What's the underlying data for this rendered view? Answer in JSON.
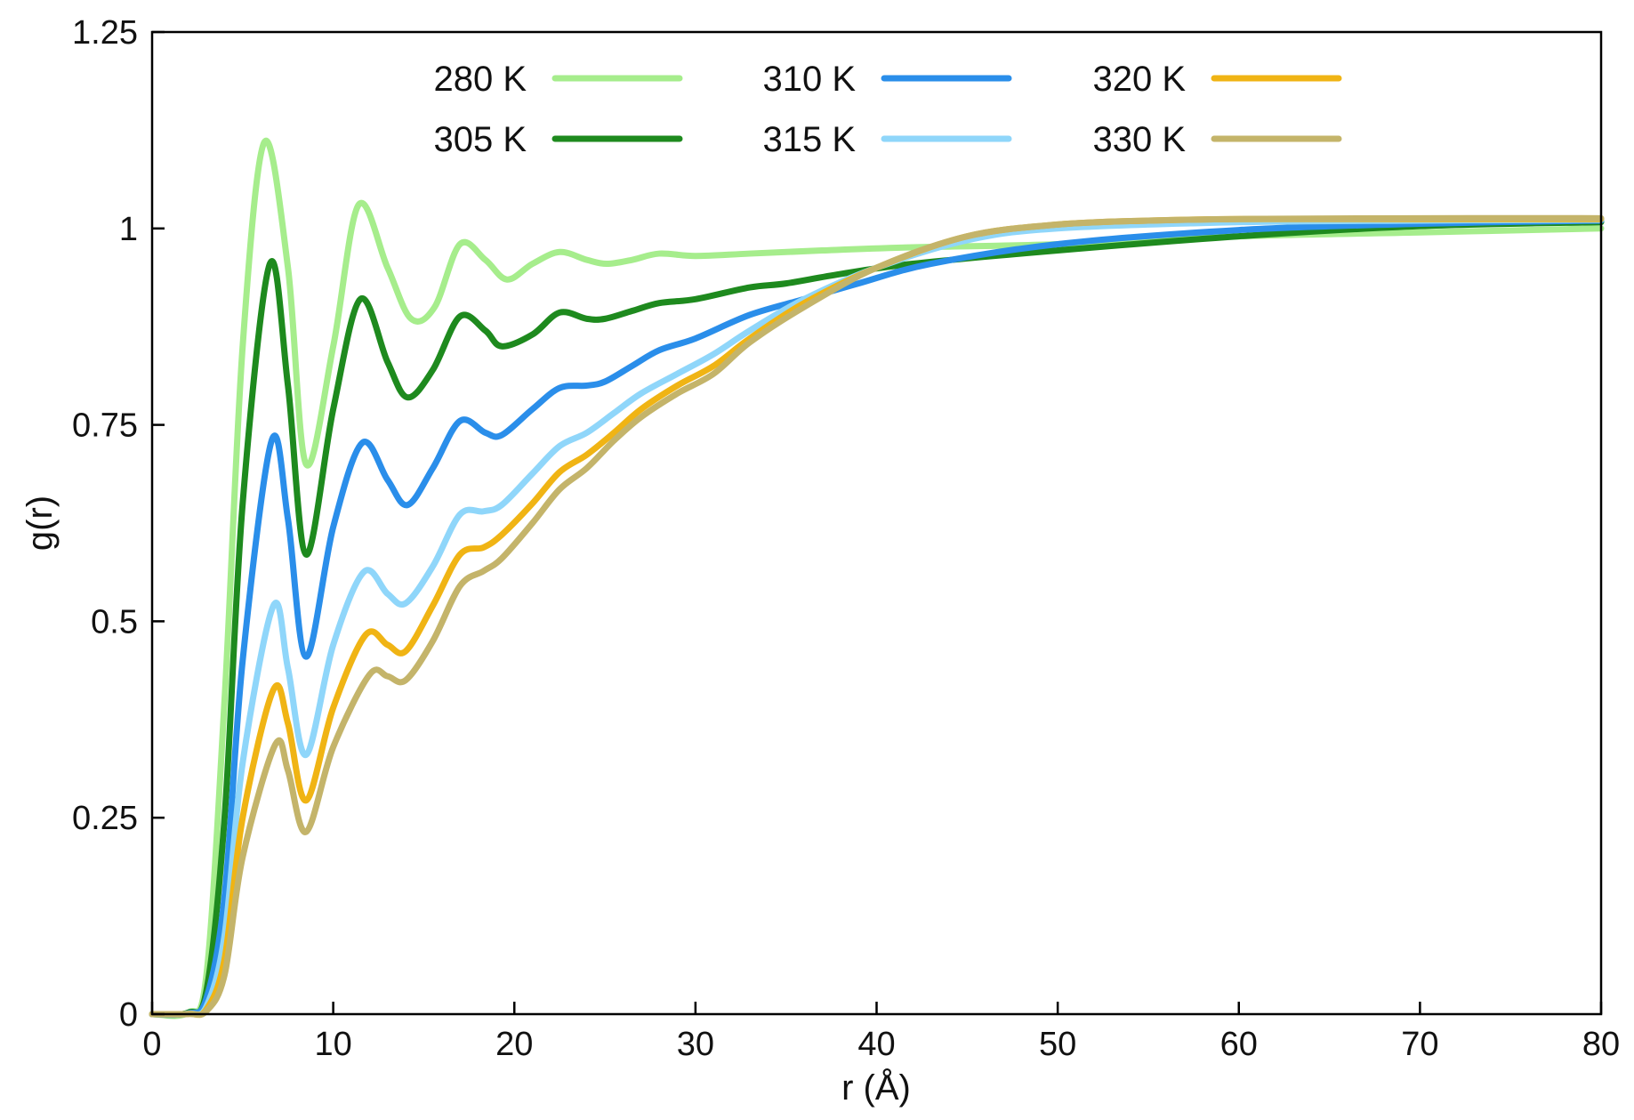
{
  "chart_data": {
    "type": "line",
    "xlabel": "r (Å)",
    "ylabel": "g(r)",
    "xlim": [
      0,
      80
    ],
    "ylim": [
      0,
      1.25
    ],
    "x_ticks": [
      0,
      10,
      20,
      30,
      40,
      50,
      60,
      70,
      80
    ],
    "y_ticks": [
      0,
      0.25,
      0.5,
      0.75,
      1,
      1.25
    ],
    "x_tick_labels": [
      "0",
      "10",
      "20",
      "30",
      "40",
      "50",
      "60",
      "70",
      "80"
    ],
    "y_tick_labels": [
      "0",
      "0.25",
      "0.5",
      "0.75",
      "1",
      "1.25"
    ],
    "grid": false,
    "legend_position": "top",
    "series": [
      {
        "name": "280 K",
        "color": "#a6ed8c",
        "x": [
          0,
          2,
          3,
          4,
          5,
          6.2,
          7.5,
          8.5,
          10,
          11.4,
          13,
          14.3,
          15.6,
          17,
          18.4,
          19.6,
          21,
          22.5,
          24,
          25.1,
          26.5,
          28,
          30,
          33,
          37,
          42,
          50,
          60,
          70,
          80
        ],
        "y": [
          0,
          0.002,
          0.05,
          0.4,
          0.85,
          1.11,
          0.95,
          0.7,
          0.85,
          1.03,
          0.95,
          0.885,
          0.9,
          0.98,
          0.96,
          0.935,
          0.955,
          0.97,
          0.96,
          0.955,
          0.96,
          0.968,
          0.965,
          0.968,
          0.972,
          0.976,
          0.98,
          0.99,
          0.995,
          1.0
        ]
      },
      {
        "name": "305 K",
        "color": "#1e8a1e",
        "x": [
          0,
          2,
          3,
          4,
          5,
          6.5,
          7.5,
          8.5,
          10,
          11.5,
          13,
          14.1,
          15.5,
          17,
          18.4,
          19.3,
          21,
          22.5,
          24,
          25,
          26.5,
          28,
          30,
          33,
          35,
          38,
          42,
          50,
          60,
          70,
          80
        ],
        "y": [
          0,
          0.002,
          0.03,
          0.25,
          0.65,
          0.955,
          0.8,
          0.585,
          0.77,
          0.91,
          0.83,
          0.785,
          0.82,
          0.888,
          0.87,
          0.85,
          0.865,
          0.893,
          0.885,
          0.885,
          0.895,
          0.905,
          0.91,
          0.925,
          0.93,
          0.942,
          0.955,
          0.972,
          0.99,
          1.003,
          1.008
        ]
      },
      {
        "name": "310 K",
        "color": "#2a8eea",
        "x": [
          0,
          2,
          3,
          4,
          5,
          6.6,
          7.5,
          8.5,
          10,
          11.6,
          13,
          14.1,
          15.5,
          17,
          18.4,
          19.3,
          21,
          22.5,
          24,
          25,
          26.5,
          28,
          30,
          33,
          36,
          39,
          43,
          50,
          60,
          70,
          80
        ],
        "y": [
          0,
          0.001,
          0.02,
          0.15,
          0.45,
          0.73,
          0.63,
          0.455,
          0.62,
          0.727,
          0.68,
          0.648,
          0.695,
          0.755,
          0.74,
          0.737,
          0.77,
          0.797,
          0.8,
          0.805,
          0.825,
          0.845,
          0.86,
          0.89,
          0.91,
          0.93,
          0.955,
          0.98,
          0.998,
          1.006,
          1.01
        ]
      },
      {
        "name": "315 K",
        "color": "#8fd6fa",
        "x": [
          0,
          2,
          3,
          4,
          5,
          6.7,
          7.5,
          8.5,
          10,
          11.7,
          13,
          14,
          15.5,
          17,
          18.3,
          19.3,
          21,
          22.5,
          24,
          25.5,
          27,
          29,
          31,
          33,
          36,
          40,
          45,
          50,
          60,
          70,
          80
        ],
        "y": [
          0,
          0.0005,
          0.01,
          0.1,
          0.32,
          0.52,
          0.44,
          0.33,
          0.47,
          0.563,
          0.535,
          0.523,
          0.57,
          0.636,
          0.64,
          0.648,
          0.688,
          0.723,
          0.74,
          0.765,
          0.79,
          0.815,
          0.84,
          0.87,
          0.91,
          0.95,
          0.985,
          1.0,
          1.008,
          1.01,
          1.011
        ]
      },
      {
        "name": "320 K",
        "color": "#f0b414",
        "x": [
          0,
          2,
          3,
          4,
          5,
          6.7,
          7.5,
          8.5,
          10,
          11.8,
          13,
          14,
          15.5,
          17,
          18.3,
          19.3,
          21,
          22.5,
          24,
          25.5,
          27,
          29,
          31,
          33,
          36,
          40,
          45,
          50,
          55,
          60,
          70,
          80
        ],
        "y": [
          0,
          0.0003,
          0.006,
          0.07,
          0.25,
          0.413,
          0.37,
          0.272,
          0.39,
          0.483,
          0.47,
          0.462,
          0.52,
          0.585,
          0.594,
          0.61,
          0.65,
          0.69,
          0.712,
          0.74,
          0.77,
          0.8,
          0.825,
          0.86,
          0.905,
          0.95,
          0.99,
          1.005,
          1.01,
          1.012,
          1.012,
          1.012
        ]
      },
      {
        "name": "330 K",
        "color": "#c4b46a",
        "x": [
          0,
          2,
          3,
          4,
          5,
          6.8,
          7.5,
          8.5,
          10,
          12,
          13,
          14,
          15.5,
          17,
          18.3,
          19.3,
          21,
          22.5,
          24,
          25.5,
          27,
          29,
          31,
          33,
          36,
          40,
          45,
          50,
          55,
          60,
          70,
          80
        ],
        "y": [
          0,
          0.0002,
          0.004,
          0.05,
          0.2,
          0.343,
          0.31,
          0.232,
          0.34,
          0.432,
          0.43,
          0.425,
          0.475,
          0.545,
          0.564,
          0.58,
          0.625,
          0.668,
          0.695,
          0.73,
          0.76,
          0.79,
          0.815,
          0.855,
          0.9,
          0.95,
          0.99,
          1.005,
          1.01,
          1.012,
          1.013,
          1.013
        ]
      }
    ]
  }
}
